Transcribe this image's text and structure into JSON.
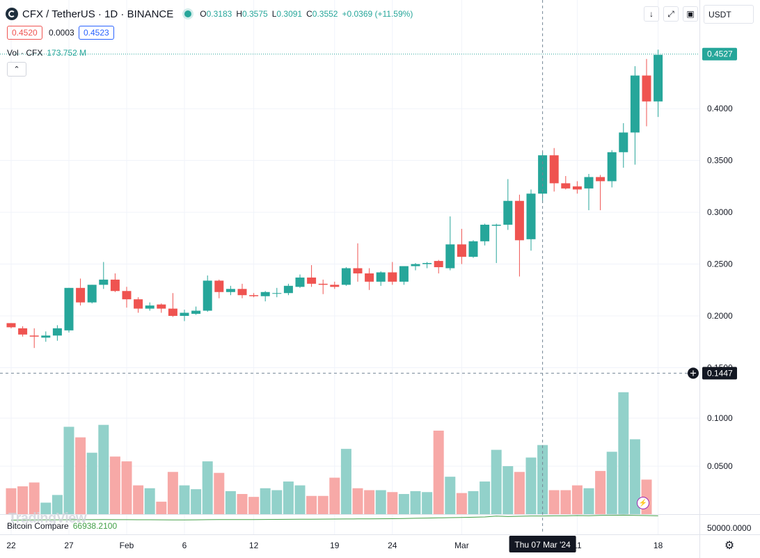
{
  "header": {
    "symbol": "CFX / TetherUS · 1D · BINANCE",
    "o_key": "O",
    "o_val": "0.3183",
    "h_key": "H",
    "h_val": "0.3575",
    "l_key": "L",
    "l_val": "0.3091",
    "c_key": "C",
    "c_val": "0.3552",
    "change": "+0.0369 (+11.59%)"
  },
  "quote": {
    "bid": "0.4520",
    "spread": "0.0003",
    "ask": "0.4523"
  },
  "volume_legend": {
    "label": "Vol · CFX",
    "value": "173.752 M"
  },
  "compare_legend": {
    "label": "Bitcoin Compare",
    "value": "66938.2100"
  },
  "toolbar": {
    "currency": "USDT",
    "collapse_icon": "chevron-up-icon",
    "settings_icon": "gear-icon"
  },
  "watermark": "TradingView",
  "crosshair": {
    "date_label": "Thu 07 Mar '24",
    "price_label": "0.1447"
  },
  "last_price_label": "0.4527",
  "colors": {
    "up": "#26a69a",
    "down": "#ef5350",
    "up_vol": "#92d1ca",
    "down_vol": "#f7a9a7",
    "compare": "#43a047",
    "compare_down": "#e57373",
    "last": "#26a69a"
  },
  "chart_data": {
    "type": "candlestick",
    "title": "CFX / TetherUS · 1D · BINANCE",
    "price_axis": {
      "ticks": [
        0.15,
        0.2,
        0.25,
        0.3,
        0.35,
        0.4
      ],
      "labels": [
        "0.1500",
        "0.2000",
        "0.2500",
        "0.3000",
        "0.3500",
        "0.4000"
      ]
    },
    "volume_axis": {
      "ticks": [
        0.05,
        0.1
      ],
      "labels": [
        "0.0500",
        "0.1000"
      ]
    },
    "compare_axis": {
      "labels": [
        "50000.0000"
      ]
    },
    "x_labels": [
      {
        "label": "22",
        "day": 0
      },
      {
        "label": "27",
        "day": 5
      },
      {
        "label": "Feb",
        "day": 10
      },
      {
        "label": "6",
        "day": 15
      },
      {
        "label": "12",
        "day": 21
      },
      {
        "label": "19",
        "day": 28
      },
      {
        "label": "24",
        "day": 33
      },
      {
        "label": "Mar",
        "day": 39
      },
      {
        "label": "11",
        "day": 49
      },
      {
        "label": "18",
        "day": 56
      }
    ],
    "candles": [
      {
        "o": 0.193,
        "h": 0.193,
        "l": 0.188,
        "c": 0.189
      },
      {
        "o": 0.188,
        "h": 0.19,
        "l": 0.18,
        "c": 0.182
      },
      {
        "o": 0.181,
        "h": 0.188,
        "l": 0.169,
        "c": 0.18
      },
      {
        "o": 0.179,
        "h": 0.185,
        "l": 0.175,
        "c": 0.181
      },
      {
        "o": 0.181,
        "h": 0.191,
        "l": 0.176,
        "c": 0.188
      },
      {
        "o": 0.186,
        "h": 0.227,
        "l": 0.184,
        "c": 0.227
      },
      {
        "o": 0.227,
        "h": 0.236,
        "l": 0.21,
        "c": 0.213
      },
      {
        "o": 0.213,
        "h": 0.23,
        "l": 0.212,
        "c": 0.23
      },
      {
        "o": 0.23,
        "h": 0.252,
        "l": 0.226,
        "c": 0.235
      },
      {
        "o": 0.235,
        "h": 0.241,
        "l": 0.223,
        "c": 0.224
      },
      {
        "o": 0.224,
        "h": 0.228,
        "l": 0.208,
        "c": 0.216
      },
      {
        "o": 0.216,
        "h": 0.218,
        "l": 0.203,
        "c": 0.207
      },
      {
        "o": 0.207,
        "h": 0.213,
        "l": 0.205,
        "c": 0.21
      },
      {
        "o": 0.211,
        "h": 0.212,
        "l": 0.203,
        "c": 0.207
      },
      {
        "o": 0.207,
        "h": 0.222,
        "l": 0.199,
        "c": 0.2
      },
      {
        "o": 0.2,
        "h": 0.206,
        "l": 0.195,
        "c": 0.203
      },
      {
        "o": 0.202,
        "h": 0.209,
        "l": 0.201,
        "c": 0.205
      },
      {
        "o": 0.205,
        "h": 0.239,
        "l": 0.204,
        "c": 0.234
      },
      {
        "o": 0.234,
        "h": 0.235,
        "l": 0.217,
        "c": 0.223
      },
      {
        "o": 0.223,
        "h": 0.229,
        "l": 0.22,
        "c": 0.226
      },
      {
        "o": 0.226,
        "h": 0.231,
        "l": 0.217,
        "c": 0.22
      },
      {
        "o": 0.22,
        "h": 0.222,
        "l": 0.218,
        "c": 0.219
      },
      {
        "o": 0.219,
        "h": 0.224,
        "l": 0.214,
        "c": 0.223
      },
      {
        "o": 0.222,
        "h": 0.227,
        "l": 0.218,
        "c": 0.222
      },
      {
        "o": 0.222,
        "h": 0.231,
        "l": 0.22,
        "c": 0.229
      },
      {
        "o": 0.228,
        "h": 0.24,
        "l": 0.227,
        "c": 0.237
      },
      {
        "o": 0.237,
        "h": 0.249,
        "l": 0.228,
        "c": 0.231
      },
      {
        "o": 0.231,
        "h": 0.235,
        "l": 0.221,
        "c": 0.23
      },
      {
        "o": 0.23,
        "h": 0.233,
        "l": 0.226,
        "c": 0.228
      },
      {
        "o": 0.23,
        "h": 0.247,
        "l": 0.229,
        "c": 0.246
      },
      {
        "o": 0.246,
        "h": 0.27,
        "l": 0.233,
        "c": 0.241
      },
      {
        "o": 0.241,
        "h": 0.246,
        "l": 0.225,
        "c": 0.233
      },
      {
        "o": 0.233,
        "h": 0.243,
        "l": 0.229,
        "c": 0.242
      },
      {
        "o": 0.242,
        "h": 0.252,
        "l": 0.23,
        "c": 0.233
      },
      {
        "o": 0.233,
        "h": 0.248,
        "l": 0.23,
        "c": 0.248
      },
      {
        "o": 0.248,
        "h": 0.251,
        "l": 0.244,
        "c": 0.25
      },
      {
        "o": 0.25,
        "h": 0.252,
        "l": 0.246,
        "c": 0.251
      },
      {
        "o": 0.253,
        "h": 0.254,
        "l": 0.241,
        "c": 0.247
      },
      {
        "o": 0.246,
        "h": 0.296,
        "l": 0.244,
        "c": 0.269
      },
      {
        "o": 0.269,
        "h": 0.284,
        "l": 0.25,
        "c": 0.257
      },
      {
        "o": 0.257,
        "h": 0.273,
        "l": 0.256,
        "c": 0.272
      },
      {
        "o": 0.272,
        "h": 0.289,
        "l": 0.268,
        "c": 0.288
      },
      {
        "o": 0.287,
        "h": 0.289,
        "l": 0.251,
        "c": 0.288
      },
      {
        "o": 0.288,
        "h": 0.332,
        "l": 0.283,
        "c": 0.311
      },
      {
        "o": 0.311,
        "h": 0.317,
        "l": 0.238,
        "c": 0.273
      },
      {
        "o": 0.274,
        "h": 0.322,
        "l": 0.263,
        "c": 0.318
      },
      {
        "o": 0.318,
        "h": 0.358,
        "l": 0.309,
        "c": 0.355
      },
      {
        "o": 0.355,
        "h": 0.362,
        "l": 0.32,
        "c": 0.328
      },
      {
        "o": 0.328,
        "h": 0.335,
        "l": 0.322,
        "c": 0.323
      },
      {
        "o": 0.325,
        "h": 0.33,
        "l": 0.318,
        "c": 0.322
      },
      {
        "o": 0.323,
        "h": 0.337,
        "l": 0.302,
        "c": 0.334
      },
      {
        "o": 0.334,
        "h": 0.336,
        "l": 0.302,
        "c": 0.33
      },
      {
        "o": 0.33,
        "h": 0.36,
        "l": 0.324,
        "c": 0.358
      },
      {
        "o": 0.358,
        "h": 0.386,
        "l": 0.343,
        "c": 0.377
      },
      {
        "o": 0.377,
        "h": 0.441,
        "l": 0.346,
        "c": 0.432
      },
      {
        "o": 0.432,
        "h": 0.448,
        "l": 0.383,
        "c": 0.407
      },
      {
        "o": 0.407,
        "h": 0.457,
        "l": 0.392,
        "c": 0.452
      }
    ],
    "volumes": [
      0.027,
      0.029,
      0.033,
      0.012,
      0.02,
      0.091,
      0.08,
      0.064,
      0.093,
      0.06,
      0.055,
      0.03,
      0.027,
      0.013,
      0.044,
      0.03,
      0.026,
      0.055,
      0.043,
      0.024,
      0.021,
      0.018,
      0.027,
      0.025,
      0.034,
      0.03,
      0.019,
      0.019,
      0.038,
      0.068,
      0.027,
      0.025,
      0.025,
      0.023,
      0.021,
      0.024,
      0.023,
      0.087,
      0.039,
      0.022,
      0.024,
      0.034,
      0.067,
      0.05,
      0.044,
      0.059,
      0.072,
      0.025,
      0.025,
      0.03,
      0.027,
      0.045,
      0.065,
      0.127,
      0.078,
      0.036,
      0.0
    ],
    "compare_series": [
      0.2,
      0.3,
      0.4,
      0.45,
      0.45,
      0.5,
      0.55,
      0.55,
      0.6,
      0.55,
      0.55,
      0.5,
      0.5,
      0.45,
      0.4,
      0.4,
      0.45,
      0.55,
      0.6,
      0.6,
      0.65,
      0.65,
      0.7,
      0.75,
      0.8,
      0.85,
      0.9,
      0.95,
      1.0,
      1.05,
      1.1,
      1.15,
      1.2,
      1.25,
      1.4,
      1.55,
      1.7,
      1.85,
      2.0,
      2.1,
      2.3,
      2.5,
      3.1,
      2.8,
      3.0,
      3.2,
      3.2,
      3.3,
      3.3,
      3.5,
      3.4,
      3.6,
      3.7,
      3.8,
      3.6,
      3.5,
      3.3
    ],
    "compare_range": [
      0,
      5
    ],
    "last_price": 0.4527,
    "crosshair_price": 0.1447,
    "crosshair_day": 46,
    "grid": true
  }
}
